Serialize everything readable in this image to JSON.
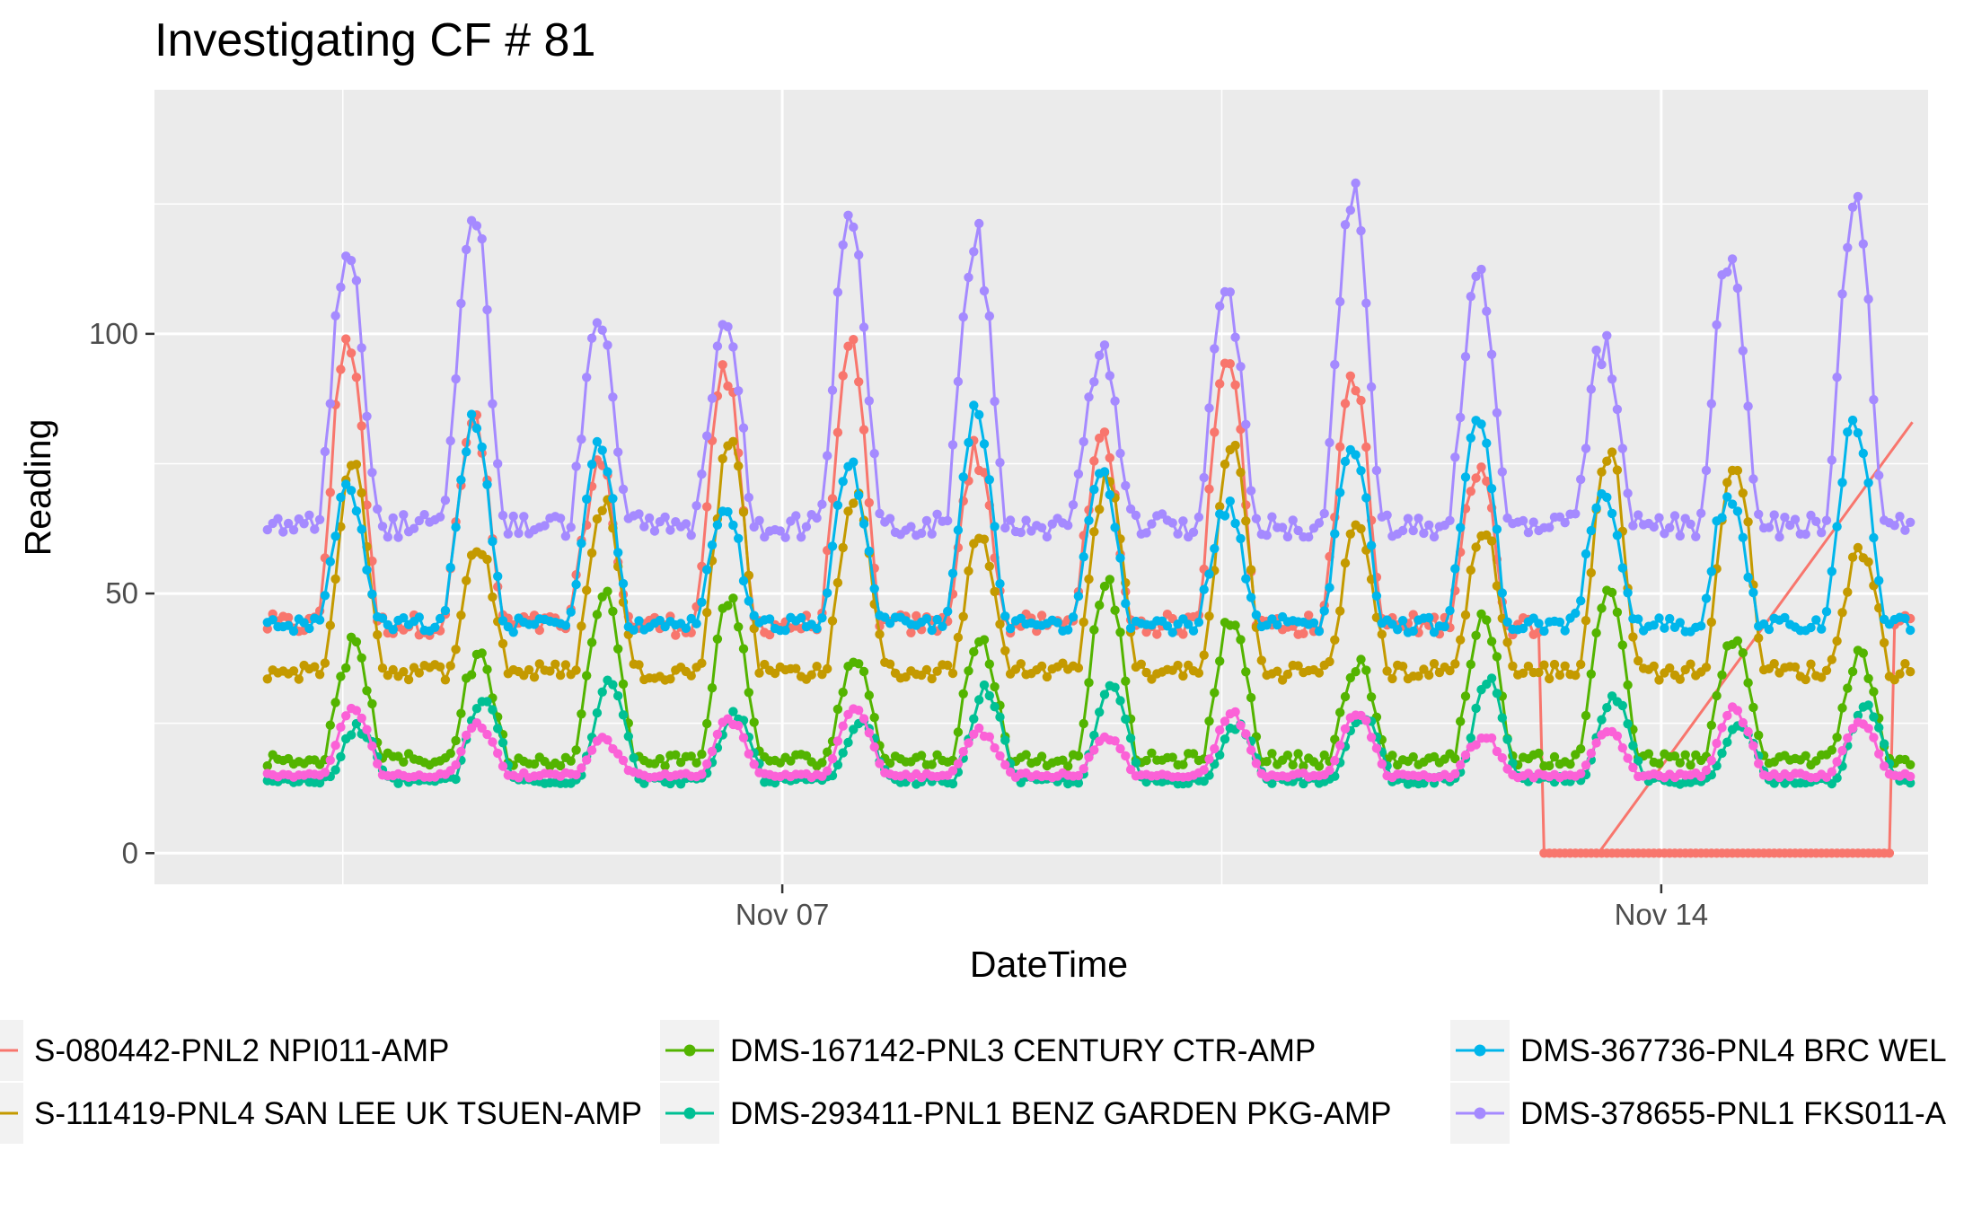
{
  "chart_data": {
    "type": "line",
    "title": "Investigating CF # 81",
    "xlabel": "DateTime",
    "ylabel": "Reading",
    "x_range": [
      "2017-11-02T00:00",
      "2017-11-16T03:00"
    ],
    "ylim": [
      -6,
      147
    ],
    "x_ticks": [
      {
        "date": "2017-11-07",
        "label": "Nov 07"
      },
      {
        "date": "2017-11-14",
        "label": "Nov 14"
      }
    ],
    "x_minor_ticks": [
      "2017-11-03T12:00",
      "2017-11-10T12:00"
    ],
    "y_ticks": [
      0,
      50,
      100
    ],
    "y_minor_ticks": [
      25,
      75,
      125
    ],
    "grid": true,
    "legend_position": "bottom",
    "colors": {
      "panel": "#ebebeb",
      "grid": "#ffffff",
      "legend_key": "#f2f2f2"
    },
    "series": [
      {
        "name": "S-080442-PNL2 NPI011-AMP",
        "color": "#F8766D",
        "marker": "circle",
        "daily_min": 44,
        "daily_max": 96,
        "peak_hour": 13,
        "anomaly": {
          "start_day": 11.05,
          "end_day": 13.85,
          "end_level": 83
        }
      },
      {
        "name": "S-111419-PNL4 SAN LEE UK TSUEN-AMP",
        "color": "#C49A00",
        "marker": "circle",
        "daily_min": 35,
        "daily_max": 77,
        "peak_hour": 14
      },
      {
        "name": "DMS-167142-PNL3 CENTURY CTR-AMP",
        "color": "#53B400",
        "marker": "circle",
        "daily_min": 18,
        "daily_max": 50,
        "peak_hour": 14
      },
      {
        "name": "DMS-293411-PNL1 BENZ GARDEN PKG-AMP",
        "color": "#00C094",
        "marker": "circle",
        "daily_min": 14,
        "daily_max": 32,
        "peak_hour": 15
      },
      {
        "name": "DMS-367736-PNL4 BRC WEL",
        "color": "#00B6EB",
        "marker": "circle",
        "daily_min": 44,
        "daily_max": 82,
        "peak_hour": 13
      },
      {
        "name": "DMS-378655-PNL1 FKS011-A",
        "color": "#A58AFF",
        "marker": "circle",
        "daily_min": 63,
        "daily_max": 122,
        "peak_hour": 13
      },
      {
        "name": "",
        "color": "#FB61D7",
        "marker": "circle",
        "daily_min": 15,
        "daily_max": 27,
        "peak_hour": 14
      }
    ],
    "legend": [
      {
        "label": "S-080442-PNL2 NPI011-AMP",
        "color": "#F8766D"
      },
      {
        "label": "S-111419-PNL4 SAN LEE UK TSUEN-AMP",
        "color": "#C49A00"
      },
      {
        "label": "DMS-167142-PNL3 CENTURY CTR-AMP",
        "color": "#53B400"
      },
      {
        "label": "DMS-293411-PNL1 BENZ GARDEN PKG-AMP",
        "color": "#00C094"
      },
      {
        "label": "DMS-367736-PNL4 BRC WEL",
        "color": "#00B6EB"
      },
      {
        "label": "DMS-378655-PNL1 FKS011-A",
        "color": "#A58AFF"
      }
    ]
  }
}
